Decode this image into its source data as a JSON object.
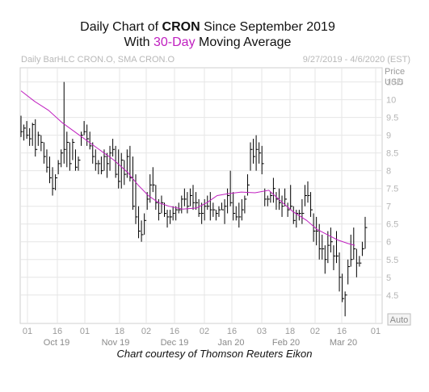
{
  "header": {
    "title_prefix": "Daily Chart of ",
    "title_ticker": "CRON",
    "title_suffix": " Since September 2019",
    "subtitle_prefix": "With ",
    "subtitle_period": "30-Day",
    "subtitle_suffix": " Moving Average",
    "legend_text": "Daily BarHLC CRON.O, SMA CRON.O",
    "date_range": "9/27/2019 - 4/6/2020 (EST)",
    "price_label": "Price",
    "currency_label": "USD",
    "auto_button": "Auto",
    "credit": "Chart courtesy of Thomson Reuters Eikon"
  },
  "colors": {
    "bars": "#000000",
    "moving_average": "#c020c0",
    "grid": "#e6e6e6",
    "accent_text": "#c020c0"
  },
  "chart_data": {
    "type": "ohlc",
    "title": "Daily Chart of CRON Since September 2019",
    "subtitle": "With 30-Day Moving Average",
    "ylabel": "Price USD",
    "ylim": [
      3.7,
      10.9
    ],
    "yticks": [
      "4.5",
      "5",
      "5.5",
      "6",
      "6.5",
      "7",
      "7.5",
      "8",
      "8.5",
      "9",
      "9.5",
      "10",
      "10.5"
    ],
    "x_day_ticks": [
      "01",
      "16",
      "01",
      "18",
      "02",
      "16",
      "02",
      "16",
      "03",
      "18",
      "02",
      "16",
      "01"
    ],
    "x_month_labels": [
      "Oct 19",
      "Nov 19",
      "Dec 19",
      "Jan 20",
      "Feb 20",
      "Mar 20"
    ],
    "grid": true,
    "series": [
      {
        "name": "CRON.O",
        "style": "HLC bars",
        "high": [
          9.55,
          9.3,
          9.4,
          9.2,
          9.35,
          9.45,
          9.1,
          9.0,
          8.8,
          8.6,
          8.4,
          8.1,
          7.9,
          8.3,
          8.6,
          10.5,
          9.1,
          8.8,
          8.9,
          8.6,
          8.4,
          9.1,
          9.4,
          9.3,
          9.1,
          8.8,
          8.6,
          8.3,
          8.4,
          8.6,
          8.5,
          8.7,
          8.9,
          8.7,
          8.6,
          8.5,
          8.3,
          8.6,
          8.7,
          8.4,
          7.9,
          7.0,
          6.6,
          6.8,
          7.4,
          7.9,
          8.1,
          7.6,
          7.2,
          7.3,
          7.1,
          6.9,
          6.9,
          7.0,
          7.0,
          7.1,
          7.3,
          7.5,
          7.4,
          7.5,
          7.6,
          7.4,
          7.2,
          7.1,
          7.2,
          7.3,
          7.4,
          7.1,
          6.9,
          7.0,
          7.1,
          7.2,
          7.5,
          8.0,
          7.4,
          7.0,
          7.1,
          7.2,
          7.3,
          7.9,
          8.8,
          8.9,
          9.0,
          8.8,
          8.7,
          7.5,
          7.3,
          7.4,
          7.8,
          7.4,
          7.5,
          7.3,
          7.5,
          7.1,
          7.6,
          7.0,
          6.9,
          6.9,
          7.2,
          7.6,
          7.7,
          7.4,
          6.8,
          6.7,
          6.5,
          6.2,
          5.9,
          6.3,
          6.4,
          5.9,
          6.3,
          5.7,
          5.1,
          4.6,
          5.5,
          6.2,
          6.4,
          5.8,
          5.6,
          6.0,
          6.7
        ],
        "low": [
          8.95,
          8.85,
          8.9,
          8.7,
          8.7,
          8.4,
          8.7,
          8.55,
          8.2,
          7.95,
          7.65,
          7.3,
          7.45,
          7.9,
          8.1,
          8.2,
          8.1,
          8.0,
          8.3,
          8.0,
          8.0,
          8.7,
          9.0,
          8.7,
          8.6,
          8.2,
          8.0,
          7.9,
          7.9,
          8.0,
          7.8,
          8.0,
          8.4,
          7.8,
          7.5,
          7.5,
          7.6,
          7.8,
          7.7,
          6.9,
          6.5,
          6.1,
          6.0,
          6.2,
          6.9,
          7.1,
          7.4,
          6.9,
          6.6,
          6.8,
          6.7,
          6.4,
          6.5,
          6.6,
          6.6,
          6.8,
          6.8,
          7.0,
          6.8,
          7.0,
          6.9,
          6.9,
          6.7,
          6.5,
          6.6,
          6.9,
          6.6,
          6.7,
          6.6,
          6.7,
          6.9,
          6.5,
          6.8,
          7.0,
          6.6,
          6.6,
          6.4,
          6.6,
          6.8,
          7.3,
          8.0,
          8.2,
          8.0,
          8.2,
          7.9,
          7.0,
          7.0,
          7.1,
          7.1,
          6.9,
          6.9,
          6.7,
          7.0,
          6.7,
          6.9,
          6.5,
          6.4,
          6.6,
          6.5,
          7.0,
          7.1,
          6.7,
          6.0,
          5.9,
          5.5,
          5.5,
          5.1,
          5.4,
          5.7,
          5.2,
          5.4,
          4.6,
          4.3,
          3.9,
          4.8,
          5.3,
          5.5,
          5.0,
          5.3,
          5.6,
          5.8
        ],
        "close": [
          9.1,
          9.2,
          9.0,
          8.9,
          9.3,
          8.6,
          9.0,
          8.8,
          8.4,
          8.1,
          7.8,
          7.5,
          7.8,
          8.2,
          8.5,
          8.6,
          8.8,
          8.2,
          8.8,
          8.1,
          8.3,
          9.0,
          9.1,
          8.9,
          8.7,
          8.4,
          8.2,
          8.2,
          8.0,
          8.4,
          8.2,
          8.5,
          8.6,
          7.9,
          7.7,
          8.3,
          7.9,
          8.4,
          7.8,
          7.0,
          6.7,
          6.3,
          6.2,
          6.6,
          7.2,
          7.6,
          7.6,
          7.1,
          6.8,
          7.1,
          6.8,
          6.7,
          6.7,
          6.8,
          6.9,
          6.9,
          7.2,
          7.2,
          7.0,
          7.3,
          7.1,
          7.1,
          6.8,
          6.8,
          7.0,
          7.0,
          6.9,
          6.9,
          6.8,
          6.9,
          6.9,
          7.0,
          7.3,
          7.1,
          6.8,
          6.7,
          6.7,
          6.9,
          7.2,
          7.6,
          8.6,
          8.4,
          8.6,
          8.5,
          8.2,
          7.2,
          7.2,
          7.3,
          7.5,
          7.2,
          7.1,
          7.0,
          7.2,
          6.9,
          7.0,
          6.6,
          6.8,
          6.8,
          6.8,
          7.3,
          7.3,
          6.9,
          6.3,
          6.3,
          5.8,
          5.8,
          5.5,
          5.9,
          6.0,
          5.6,
          5.6,
          5.0,
          4.4,
          4.5,
          5.3,
          5.5,
          5.8,
          5.4,
          5.4,
          5.8,
          6.4
        ]
      },
      {
        "name": "30-Day SMA",
        "style": "line",
        "x_frac": [
          0.0,
          0.04,
          0.08,
          0.12,
          0.17,
          0.22,
          0.27,
          0.31,
          0.34,
          0.37,
          0.4,
          0.43,
          0.47,
          0.51,
          0.54,
          0.57,
          0.6,
          0.64,
          0.68,
          0.72,
          0.76,
          0.79,
          0.83,
          0.86,
          0.89,
          0.92,
          0.95,
          0.97
        ],
        "values": [
          10.25,
          9.95,
          9.7,
          9.35,
          9.0,
          8.65,
          8.3,
          7.95,
          7.6,
          7.3,
          7.1,
          7.0,
          6.92,
          6.95,
          7.1,
          7.3,
          7.35,
          7.4,
          7.38,
          7.45,
          7.1,
          6.85,
          6.6,
          6.35,
          6.2,
          6.05,
          5.95,
          5.9
        ]
      }
    ]
  }
}
